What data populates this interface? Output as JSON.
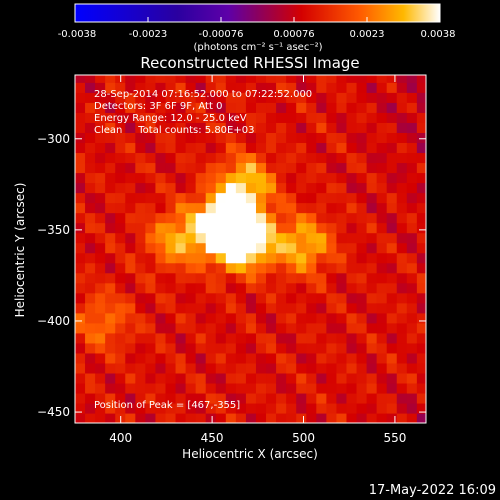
{
  "chart_data": {
    "type": "heatmap",
    "title": "Reconstructed RHESSI Image",
    "xlabel": "Heliocentric X (arcsec)",
    "ylabel": "Heliocentric Y (arcsec)",
    "xlim": [
      375,
      567
    ],
    "ylim": [
      -456,
      -265
    ],
    "x_ticks": [
      400,
      450,
      500,
      550
    ],
    "y_ticks": [
      -300,
      -350,
      -400,
      -450
    ],
    "colorbar": {
      "ticks": [
        "-0.0038",
        "-0.0023",
        "-0.00076",
        "0.00076",
        "0.0023",
        "0.0038"
      ],
      "range": [
        -0.0038,
        0.0038
      ],
      "units": "(photons cm⁻² s⁻¹ asec⁻²)"
    },
    "annotations": [
      "28-Sep-2014 07:16:52.000 to 07:22:52.000",
      "Detectors: 3F 6F 9F, Att 0",
      "Energy Range: 12.0 - 25.0 keV",
      "Clean     Total counts: 5.80E+03"
    ],
    "peak_label": "Position of Peak = [467,-355]",
    "peak": {
      "x": 467,
      "y": -355
    },
    "sources": [
      {
        "x": 467,
        "y": -355,
        "peak": 0.0038
      },
      {
        "x": 455,
        "y": -347,
        "peak": 0.0031
      },
      {
        "x": 468,
        "y": -325,
        "peak": 0.0022
      },
      {
        "x": 500,
        "y": -358,
        "peak": 0.002
      },
      {
        "x": 430,
        "y": -355,
        "peak": 0.0017
      },
      {
        "x": 390,
        "y": -400,
        "peak": 0.0012
      }
    ],
    "footer_date": "17-May-2022 16:09"
  }
}
